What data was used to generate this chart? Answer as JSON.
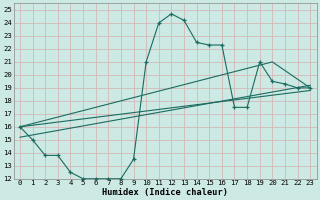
{
  "xlabel": "Humidex (Indice chaleur)",
  "bg_color": "#cce9e4",
  "grid_color": "#d9b8b8",
  "line_color": "#1a6b60",
  "xlim": [
    -0.5,
    23.5
  ],
  "ylim": [
    12,
    25.5
  ],
  "xticks": [
    0,
    1,
    2,
    3,
    4,
    5,
    6,
    7,
    8,
    9,
    10,
    11,
    12,
    13,
    14,
    15,
    16,
    17,
    18,
    19,
    20,
    21,
    22,
    23
  ],
  "yticks": [
    12,
    13,
    14,
    15,
    16,
    17,
    18,
    19,
    20,
    21,
    22,
    23,
    24,
    25
  ],
  "main_x": [
    0,
    1,
    2,
    3,
    4,
    5,
    6,
    7,
    8,
    9,
    10,
    11,
    12,
    13,
    14,
    15,
    16,
    17,
    18,
    19,
    20,
    21,
    22,
    23
  ],
  "main_y": [
    16,
    15,
    13.8,
    13.8,
    12.5,
    12,
    12,
    12,
    12,
    13.5,
    21,
    24,
    24.7,
    24.2,
    22.5,
    22.3,
    22.3,
    17.5,
    17.5,
    21,
    19.5,
    19.3,
    19,
    19
  ],
  "line1_x": [
    0,
    23
  ],
  "line1_y": [
    16,
    18.8
  ],
  "line2_x": [
    0,
    23
  ],
  "line2_y": [
    15.2,
    19.2
  ],
  "line3_x": [
    0,
    20,
    23
  ],
  "line3_y": [
    16,
    21,
    19
  ]
}
